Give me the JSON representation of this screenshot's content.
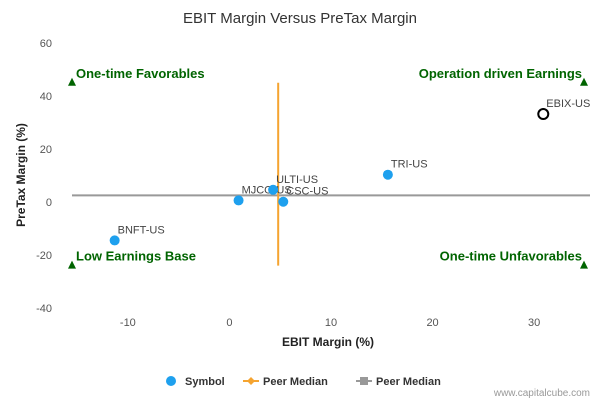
{
  "chart_data": {
    "type": "scatter",
    "title": "EBIT Margin Versus PreTax Margin",
    "xlabel": "EBIT Margin (%)",
    "ylabel": "PreTax Margin (%)",
    "xlim": [
      -15.5,
      35.5
    ],
    "ylim": [
      -40,
      60
    ],
    "xticks": [
      -10,
      0,
      10,
      20,
      30
    ],
    "yticks": [
      -40,
      -20,
      0,
      20,
      40,
      60
    ],
    "grid": false,
    "legend_position": "bottom",
    "points": [
      {
        "label": "BNFT-US",
        "x": -11.3,
        "y": -14.5,
        "style": "filled"
      },
      {
        "label": "MJCO-US",
        "x": 0.9,
        "y": 0.6,
        "style": "filled"
      },
      {
        "label": "ULTI-US",
        "x": 4.3,
        "y": 4.6,
        "style": "filled"
      },
      {
        "label": "CSC-US",
        "x": 5.3,
        "y": 0.1,
        "style": "filled"
      },
      {
        "label": "TRI-US",
        "x": 15.6,
        "y": 10.3,
        "style": "filled"
      },
      {
        "label": "EBIX-US",
        "x": 30.9,
        "y": 33.2,
        "style": "hollow"
      }
    ],
    "peer_median_x": 4.8,
    "peer_median_y": 2.5,
    "peer_median_vertical_range": [
      -24,
      45
    ],
    "quadrant_labels": {
      "top_left": "One-time Favorables",
      "top_right": "Operation driven Earnings",
      "bottom_left": "Low Earnings Base",
      "bottom_right": "One-time Unfavorables"
    },
    "quadrant_marker_y": {
      "top": 45,
      "bottom": -24
    },
    "legend": [
      {
        "label": "Symbol",
        "kind": "circle"
      },
      {
        "label": "Peer Median",
        "kind": "line-diamond"
      },
      {
        "label": "Peer Median",
        "kind": "line-square"
      }
    ],
    "colors": {
      "point": "#1ea0ee",
      "hollow_point": "#000000",
      "median_vertical": "#f5a430",
      "median_horizontal": "#999999",
      "quadrant_text": "#006400",
      "quadrant_marker": "#006400"
    },
    "watermark": "www.capitalcube.com"
  }
}
